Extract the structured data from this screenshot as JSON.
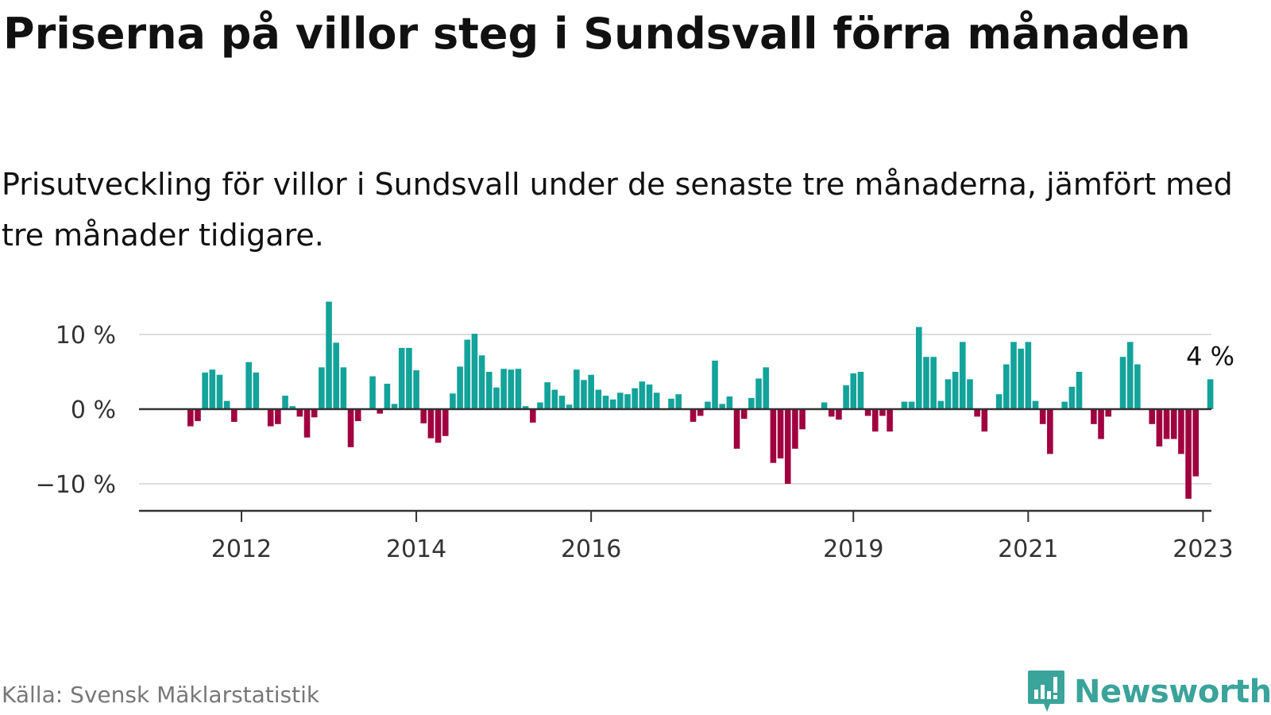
{
  "title": "Priserna på villor steg i Sundsvall förra månaden",
  "subtitle": "Prisutveckling för villor i Sundsvall under de senaste tre månaderna, jämfört med tre månader tidigare.",
  "source": "Källa: Svensk Mäklarstatistik",
  "brand": "Newsworthy",
  "colors": {
    "positive": "#13a39a",
    "negative": "#a0003f",
    "brand": "#3aa39a",
    "grid": "#dddddd",
    "axis": "#333333"
  },
  "chart_data": {
    "type": "bar",
    "ylabel": "",
    "ylim": [
      -14,
      15
    ],
    "y_ticks": [
      {
        "value": 10,
        "label": "10 %"
      },
      {
        "value": 0,
        "label": "0 %"
      },
      {
        "value": -10,
        "label": "−10 %"
      }
    ],
    "x_ticks": [
      {
        "index": 7,
        "label": "2012"
      },
      {
        "index": 31,
        "label": "2014"
      },
      {
        "index": 55,
        "label": "2016"
      },
      {
        "index": 91,
        "label": "2019"
      },
      {
        "index": 115,
        "label": "2021"
      },
      {
        "index": 139,
        "label": "2023"
      }
    ],
    "last_value_label": "4 %",
    "values": [
      -2.3,
      -1.6,
      4.9,
      5.3,
      4.6,
      1.1,
      -1.7,
      0,
      6.3,
      4.9,
      0,
      -2.3,
      -2.0,
      1.8,
      0.4,
      -1.0,
      -3.8,
      -1.1,
      5.6,
      14.4,
      8.9,
      5.6,
      -5.1,
      -1.6,
      0,
      4.4,
      -0.6,
      3.4,
      0.7,
      8.2,
      8.2,
      5.2,
      -1.9,
      -3.9,
      -4.5,
      -3.6,
      2.1,
      5.7,
      9.3,
      10.1,
      7.2,
      5.0,
      2.9,
      5.4,
      5.3,
      5.4,
      0.4,
      -1.8,
      0.9,
      3.6,
      2.6,
      1.8,
      0.6,
      5.3,
      3.9,
      4.6,
      2.6,
      1.8,
      1.3,
      2.2,
      2.0,
      2.8,
      3.7,
      3.3,
      2.2,
      0,
      1.4,
      2.0,
      0,
      -1.7,
      -0.9,
      1.0,
      6.5,
      0.7,
      1.7,
      -5.3,
      -1.3,
      1.5,
      4.1,
      5.6,
      -7.2,
      -6.6,
      -10.0,
      -5.3,
      -2.7,
      0,
      0,
      0.9,
      -1.0,
      -1.4,
      3.2,
      4.8,
      5.0,
      -0.9,
      -3.0,
      -0.9,
      -3.0,
      0,
      1.0,
      1.0,
      11.0,
      7.0,
      7.0,
      1.1,
      4.0,
      5.0,
      9.0,
      4.0,
      -1.0,
      -3.0,
      0,
      2.0,
      6.0,
      9.0,
      8.1,
      9.0,
      1.1,
      -2.0,
      -6.0,
      0,
      1.0,
      3.0,
      5.0,
      0,
      -2.0,
      -4.0,
      -1.0,
      0,
      7.0,
      9.0,
      6.0,
      0,
      -2.0,
      -5.0,
      -4.0,
      -4.0,
      -6.0,
      -12.0,
      -9.0,
      0,
      4.0
    ]
  }
}
